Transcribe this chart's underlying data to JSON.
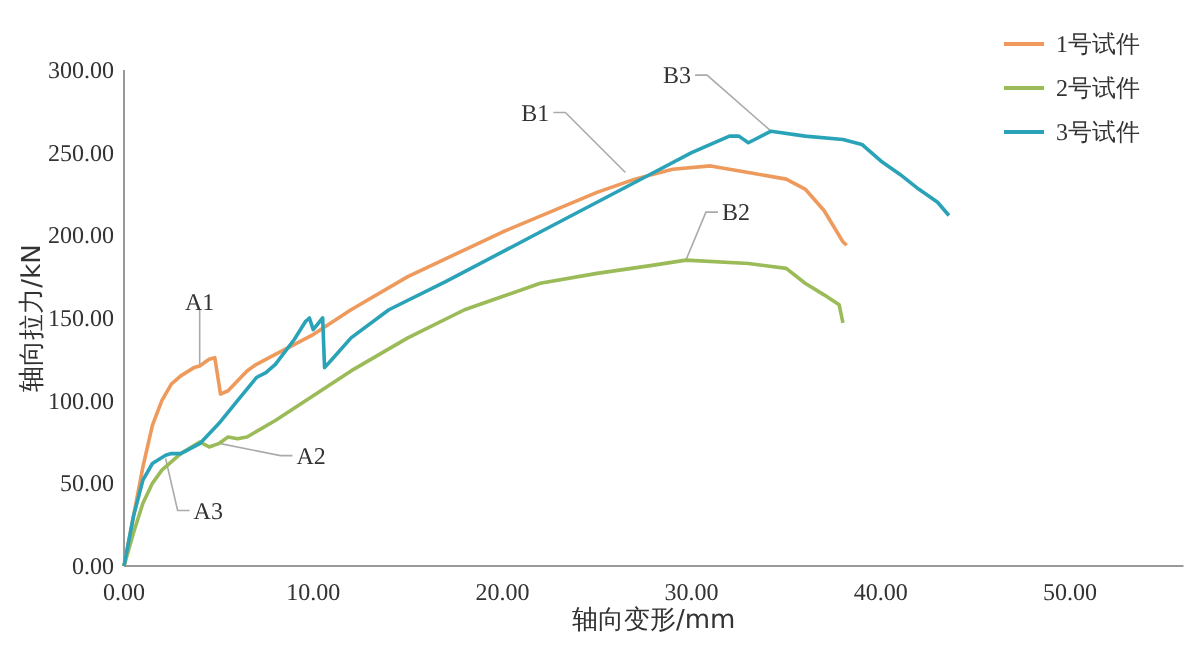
{
  "chart_data": {
    "type": "line",
    "xlabel": "轴向变形/mm",
    "ylabel": "轴向拉力/kN",
    "legend": "top right",
    "grid": false,
    "marker": "none",
    "line_style": "solid",
    "xlim": [
      0,
      56
    ],
    "ylim": [
      0,
      300
    ],
    "xticks": [
      {
        "value": 0,
        "label": "0.00"
      },
      {
        "value": 10,
        "label": "10.00"
      },
      {
        "value": 20,
        "label": "20.00"
      },
      {
        "value": 30,
        "label": "30.00"
      },
      {
        "value": 40,
        "label": "40.00"
      },
      {
        "value": 50,
        "label": "50.00"
      }
    ],
    "yticks": [
      {
        "value": 0,
        "label": "0.00"
      },
      {
        "value": 50,
        "label": "50.00"
      },
      {
        "value": 100,
        "label": "100.00"
      },
      {
        "value": 150,
        "label": "150.00"
      },
      {
        "value": 200,
        "label": "200.00"
      },
      {
        "value": 250,
        "label": "250.00"
      },
      {
        "value": 300,
        "label": "300.00"
      }
    ],
    "series": [
      {
        "name": "1号试件",
        "color": "#ee9a5c",
        "x": [
          0,
          0.5,
          1,
          1.5,
          2,
          2.5,
          3,
          3.7,
          4,
          4.5,
          4.8,
          5.1,
          5.5,
          6.5,
          7,
          8,
          10,
          12,
          15,
          20,
          25,
          27,
          29,
          31,
          33,
          35,
          36,
          37,
          38,
          38.2
        ],
        "values": [
          0,
          30,
          60,
          85,
          100,
          110,
          115,
          120,
          121,
          125,
          126,
          104,
          106,
          118,
          122,
          128,
          140,
          155,
          175,
          202,
          226,
          234,
          240,
          242,
          238,
          234,
          228,
          215,
          196,
          194
        ]
      },
      {
        "name": "2号试件",
        "color": "#9bbb59",
        "x": [
          0,
          0.5,
          1,
          1.5,
          2,
          3,
          4,
          4.5,
          5,
          5.5,
          6,
          6.5,
          8,
          10,
          12,
          15,
          18,
          20,
          22,
          25,
          28,
          29.7,
          33,
          35,
          36,
          37,
          37.8,
          38
        ],
        "values": [
          0,
          20,
          38,
          50,
          58,
          68,
          75,
          72,
          74,
          78,
          77,
          78,
          88,
          103,
          118,
          138,
          155,
          163,
          171,
          177,
          182,
          185,
          183,
          180,
          171,
          164,
          158,
          147
        ]
      },
      {
        "name": "3号试件",
        "color": "#2aa3b8",
        "x": [
          0,
          0.5,
          1,
          1.5,
          2.2,
          2.5,
          3,
          4,
          5,
          6,
          7,
          7.5,
          8,
          9,
          9.6,
          9.8,
          10,
          10.5,
          10.6,
          11,
          12,
          14,
          17,
          20,
          22,
          25,
          28,
          30,
          32,
          32.5,
          33,
          34.2,
          36,
          38,
          39,
          40,
          41,
          42,
          43,
          43.6
        ],
        "values": [
          0,
          30,
          52,
          62,
          67,
          68,
          68,
          74,
          86,
          100,
          114,
          117,
          122,
          137,
          148,
          150,
          143,
          150,
          120,
          125,
          138,
          155,
          172,
          190,
          202,
          220,
          238,
          250,
          260,
          260,
          256,
          263,
          260,
          258,
          255,
          245,
          237,
          228,
          220,
          212
        ]
      }
    ],
    "annotations": [
      {
        "text": "A1",
        "x": 4,
        "y": 121
      },
      {
        "text": "A2",
        "x": 5.1,
        "y": 74
      },
      {
        "text": "A3",
        "x": 2.2,
        "y": 65
      },
      {
        "text": "B1",
        "x": 26.5,
        "y": 238
      },
      {
        "text": "B2",
        "x": 29.7,
        "y": 185
      },
      {
        "text": "B3",
        "x": 34.2,
        "y": 263
      }
    ]
  }
}
